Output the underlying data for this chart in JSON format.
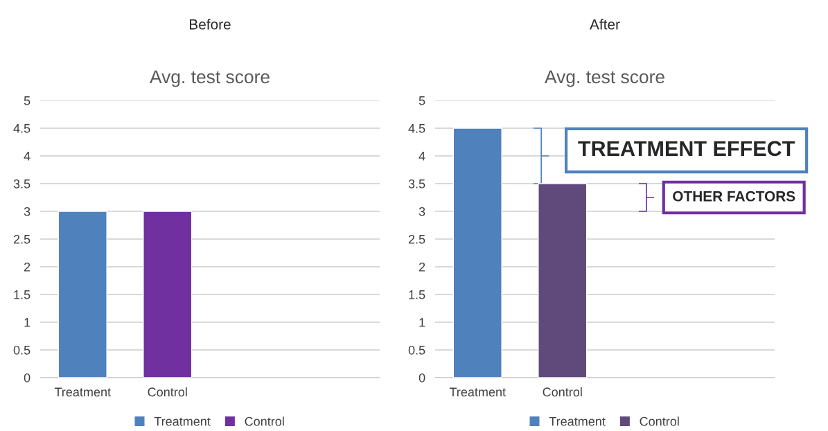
{
  "chart_data": [
    {
      "type": "bar",
      "title": "Before",
      "subtitle": "Avg. test score",
      "categories": [
        "Treatment",
        "Control",
        null,
        null
      ],
      "series": [
        {
          "name": "Treatment",
          "color": "#4f81bd",
          "values": [
            3,
            null,
            null,
            null
          ]
        },
        {
          "name": "Control",
          "color": "#7030a0",
          "values": [
            null,
            3,
            null,
            null
          ]
        }
      ],
      "ylim": [
        0,
        5
      ],
      "yticks": [
        0,
        0.5,
        1,
        1.5,
        2,
        2.5,
        3,
        3.5,
        4,
        4.5,
        5
      ],
      "grid": "y",
      "legend": "bottom"
    },
    {
      "type": "bar",
      "title": "After",
      "subtitle": "Avg. test score",
      "categories": [
        "Treatment",
        "Control",
        null,
        null
      ],
      "series": [
        {
          "name": "Treatment",
          "color": "#4f81bd",
          "values": [
            4.5,
            null,
            null,
            null
          ]
        },
        {
          "name": "Control",
          "color": "#604a7b",
          "values": [
            null,
            3.5,
            null,
            null
          ]
        }
      ],
      "ylim": [
        0,
        5
      ],
      "yticks": [
        0,
        0.5,
        1,
        1.5,
        2,
        2.5,
        3,
        3.5,
        4,
        4.5,
        5
      ],
      "grid": "y",
      "legend": "bottom",
      "annotations": [
        "TREATMENT EFFECT",
        "OTHER FACTORS"
      ]
    }
  ]
}
